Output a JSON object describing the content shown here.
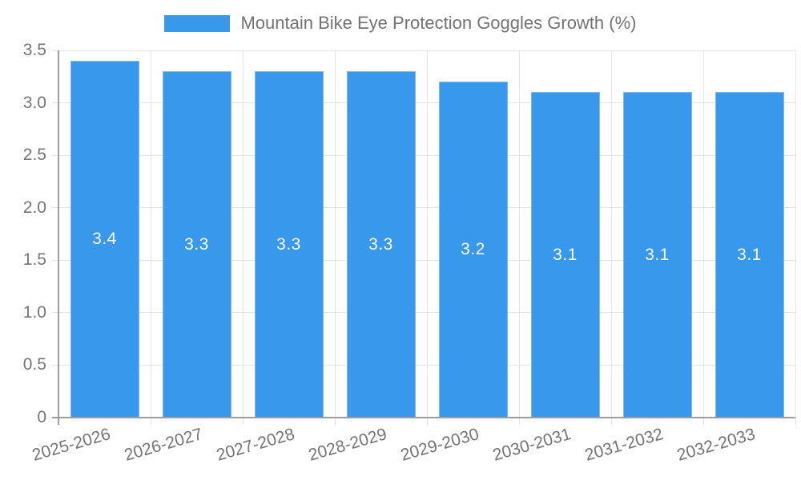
{
  "legend": {
    "label": "Mountain Bike Eye Protection Goggles Growth (%)"
  },
  "colors": {
    "bar": "#3899EC",
    "bar_border": "#7FBAF1",
    "grid": "#E3E3E3",
    "axis": "#9E9E9E",
    "tick_label": "#757575",
    "value_label": "#FFFFFF",
    "background": "#FFFFFF"
  },
  "chart_data": {
    "type": "bar",
    "title": "Mountain Bike Eye Protection Goggles Growth (%)",
    "categories": [
      "2025-2026",
      "2026-2027",
      "2027-2028",
      "2028-2029",
      "2029-2030",
      "2030-2031",
      "2031-2032",
      "2032-2033"
    ],
    "values": [
      3.4,
      3.3,
      3.3,
      3.3,
      3.2,
      3.1,
      3.1,
      3.1
    ],
    "value_labels": [
      "3.4",
      "3.3",
      "3.3",
      "3.3",
      "3.2",
      "3.1",
      "3.1",
      "3.1"
    ],
    "series": [
      {
        "name": "Mountain Bike Eye Protection Goggles Growth (%)",
        "values": [
          3.4,
          3.3,
          3.3,
          3.3,
          3.2,
          3.1,
          3.1,
          3.1
        ]
      }
    ],
    "xlabel": "",
    "ylabel": "",
    "ylim": [
      0,
      3.5
    ],
    "ytick_step": 0.5,
    "ytick_labels": [
      "0",
      "0.5",
      "1.0",
      "1.5",
      "2.0",
      "2.5",
      "3.0",
      "3.5"
    ],
    "grid": true,
    "legend_position": "top-center",
    "bar_label_position": "inside-center"
  }
}
